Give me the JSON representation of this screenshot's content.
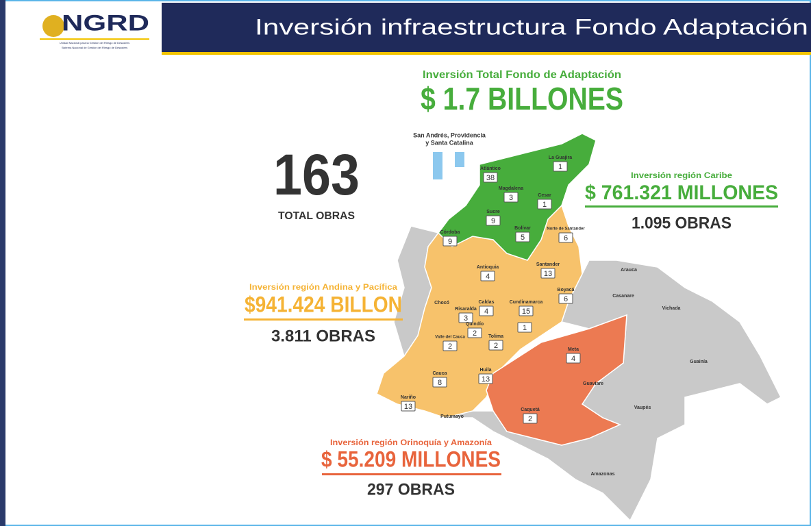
{
  "header": {
    "logo": "NGRD",
    "logo_lines": [
      "Unidad Nacional para la Gestión del Riesgo de Desastres",
      "Sistema Nacional de Gestión del Riesgo de Desastres"
    ],
    "title": "Inversión infraestructura Fondo Adaptación"
  },
  "total": {
    "label": "Inversión Total Fondo de Adaptación",
    "amount": "$ 1.7 BILLONES"
  },
  "obras": {
    "count": "163",
    "label": "TOTAL OBRAS"
  },
  "islands": {
    "label_lines": [
      "San Andrés, Providencia",
      "y Santa Catalina"
    ]
  },
  "regions": [
    {
      "label": "Inversión región Caribe",
      "amount": "$ 761.321 MILLONES",
      "obras": "1.095 OBRAS"
    },
    {
      "label": "Inversión región Andina y Pacífica",
      "amount": "$941.424 BILLON",
      "obras": "3.811 OBRAS"
    },
    {
      "label": "Inversión región Orinoquía y Amazonía",
      "amount": "$ 55.209 MILLONES",
      "obras": "297 OBRAS"
    }
  ],
  "departments": [
    {
      "name": "La Guajira",
      "count": 1
    },
    {
      "name": "Atlántico",
      "count": 38
    },
    {
      "name": "Magdalena",
      "count": 3
    },
    {
      "name": "Cesar",
      "count": 1
    },
    {
      "name": "Sucre",
      "count": 9
    },
    {
      "name": "Córdoba",
      "count": 9
    },
    {
      "name": "Bolívar",
      "count": 5
    },
    {
      "name": "Norte de Santander",
      "count": 6
    },
    {
      "name": "Antioquia",
      "count": 4
    },
    {
      "name": "Santander",
      "count": 13
    },
    {
      "name": "Boyacá",
      "count": 6
    },
    {
      "name": "Chocó"
    },
    {
      "name": "Risaralda",
      "count": 3
    },
    {
      "name": "Caldas",
      "count": 4
    },
    {
      "name": "Cundinamarca",
      "count": 15
    },
    {
      "count": 1
    },
    {
      "name": "Quindío",
      "count": 2
    },
    {
      "name": "Tolima",
      "count": 2
    },
    {
      "name": "Valle del Cauca",
      "count": 2
    },
    {
      "name": "Huila",
      "count": 13
    },
    {
      "name": "Cauca",
      "count": 8
    },
    {
      "name": "Nariño",
      "count": 13
    },
    {
      "name": "Meta",
      "count": 4
    },
    {
      "name": "Caquetá",
      "count": 2
    },
    {
      "name": "Putumayo"
    },
    {
      "name": "Arauca"
    },
    {
      "name": "Casanare"
    },
    {
      "name": "Vichada"
    },
    {
      "name": "Guainía"
    },
    {
      "name": "Guaviare"
    },
    {
      "name": "Vaupés"
    },
    {
      "name": "Amazonas"
    }
  ]
}
